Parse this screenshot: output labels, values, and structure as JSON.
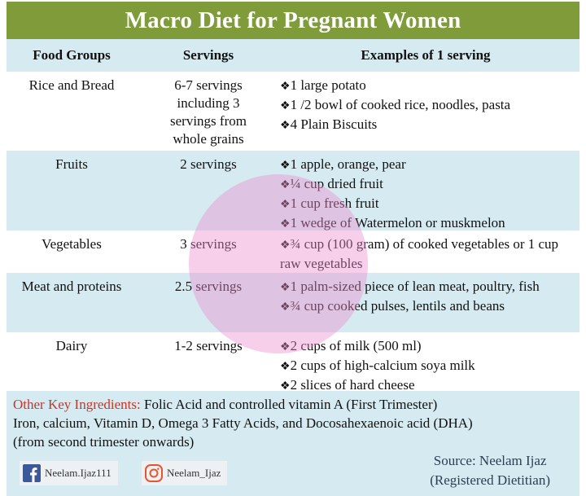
{
  "title": "Macro Diet for Pregnant Women",
  "table": {
    "header": [
      "Food Groups",
      "Servings",
      "Examples of 1 serving"
    ],
    "rows": [
      [
        "Rice and Bread",
        "6-7 servings including 3 servings from whole grains",
        [
          "1 large potato",
          "1 /2 bowl of cooked rice, noodles, pasta",
          "4 Plain Biscuits"
        ]
      ],
      [
        "Fruits",
        "2 servings",
        [
          "1 apple, orange, pear",
          "¼ cup dried fruit",
          "1 cup fresh fruit",
          "1 wedge of Watermelon or muskmelon"
        ]
      ],
      [
        "Vegetables",
        "3 servings",
        [
          "¾ cup (100 gram) of cooked vegetables  or 1 cup raw vegetables"
        ]
      ],
      [
        "Meat and proteins",
        "2.5 servings",
        [
          "1 palm-sized piece of lean meat, poultry, fish",
          "¾ cup cooked pulses, lentils and beans"
        ]
      ],
      [
        "Dairy",
        "1-2 servings",
        [
          "2 cups of milk (500 ml)",
          "2 cups of high-calcium soya milk",
          "2 slices of hard cheese"
        ]
      ]
    ]
  },
  "notes": {
    "label": "Other Key Ingredients:",
    "lines": [
      "Folic Acid and controlled vitamin A (First Trimester)",
      "Iron, calcium, Vitamin D, Omega 3 Fatty Acids, and Docosahexaenoic acid (DHA)",
      "(from second trimester onwards)"
    ]
  },
  "source": [
    "Source: Neelam Ijaz",
    "(Registered Dietitian)"
  ],
  "social": [
    "Neelam.Ijaz111",
    "Neelam_Ijaz"
  ]
}
